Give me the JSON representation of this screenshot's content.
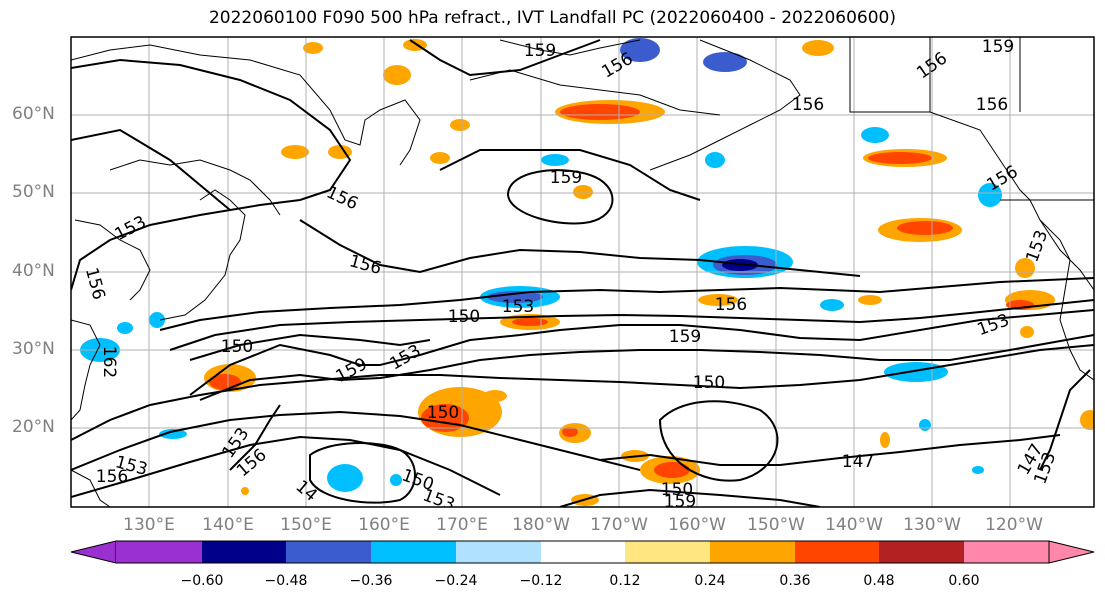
{
  "title": "2022060100 F090 500 hPa refract., IVT Landfall PC (2022060400 - 2022060600)",
  "lat_labels": [
    "60°N",
    "50°N",
    "40°N",
    "30°N",
    "20°N"
  ],
  "lon_labels": [
    "130°E",
    "140°E",
    "150°E",
    "160°E",
    "170°E",
    "180°W",
    "170°W",
    "160°W",
    "150°W",
    "140°W",
    "130°W",
    "120°W"
  ],
  "colorbar": {
    "ticks": [
      "−0.60",
      "−0.48",
      "−0.36",
      "−0.24",
      "−0.12",
      "0.12",
      "0.24",
      "0.36",
      "0.48",
      "0.60"
    ],
    "colors": [
      "#9b30d0",
      "#00008b",
      "#3a5ccc",
      "#00bfff",
      "#b0e2ff",
      "#ffffff",
      "#ffe680",
      "#ffa500",
      "#ff4500",
      "#b22222",
      "#ff88aa"
    ]
  },
  "contour_labels": [
    "159",
    "159",
    "156",
    "156",
    "159",
    "156",
    "156",
    "153",
    "156",
    "156",
    "153",
    "156",
    "153",
    "156",
    "159",
    "150",
    "159",
    "153",
    "150",
    "150",
    "147",
    "153",
    "156",
    "153",
    "156",
    "150",
    "153",
    "150",
    "159",
    "150",
    "147",
    "156",
    "153",
    "14",
    "162"
  ]
}
